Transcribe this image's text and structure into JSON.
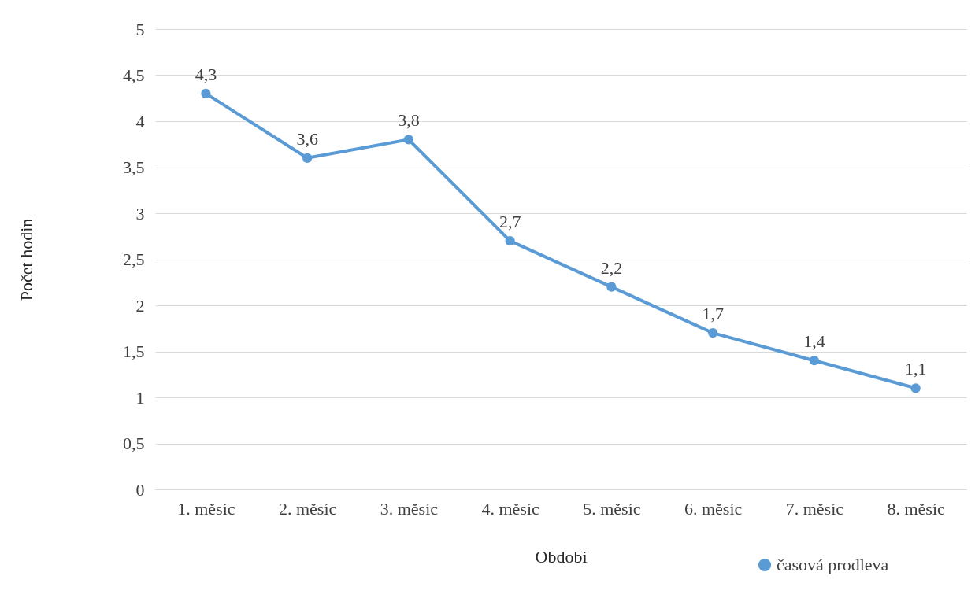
{
  "chart_data": {
    "type": "line",
    "xlabel": "Období",
    "ylabel": "Počet hodin",
    "categories": [
      "1. měsíc",
      "2. měsíc",
      "3. měsíc",
      "4. měsíc",
      "5. měsíc",
      "6. měsíc",
      "7. měsíc",
      "8. měsíc"
    ],
    "series": [
      {
        "name": "časová prodleva",
        "color": "#5b9bd5",
        "values": [
          4.3,
          3.6,
          3.8,
          2.7,
          2.2,
          1.7,
          1.4,
          1.1
        ],
        "value_labels": [
          "4,3",
          "3,6",
          "3,8",
          "2,7",
          "2,2",
          "1,7",
          "1,4",
          "1,1"
        ]
      }
    ],
    "ylim": [
      0,
      5
    ],
    "yticks": [
      0,
      {
        "value": 0.5,
        "label": "0,5"
      },
      1,
      {
        "value": 1.5,
        "label": "1,5"
      },
      2,
      {
        "value": 2.5,
        "label": "2,5"
      },
      3,
      {
        "value": 3.5,
        "label": "3,5"
      },
      4,
      {
        "value": 4.5,
        "label": "4,5"
      },
      5
    ],
    "grid": "y",
    "legend": "bottom right",
    "marker": "circle",
    "line_style": "solid"
  }
}
